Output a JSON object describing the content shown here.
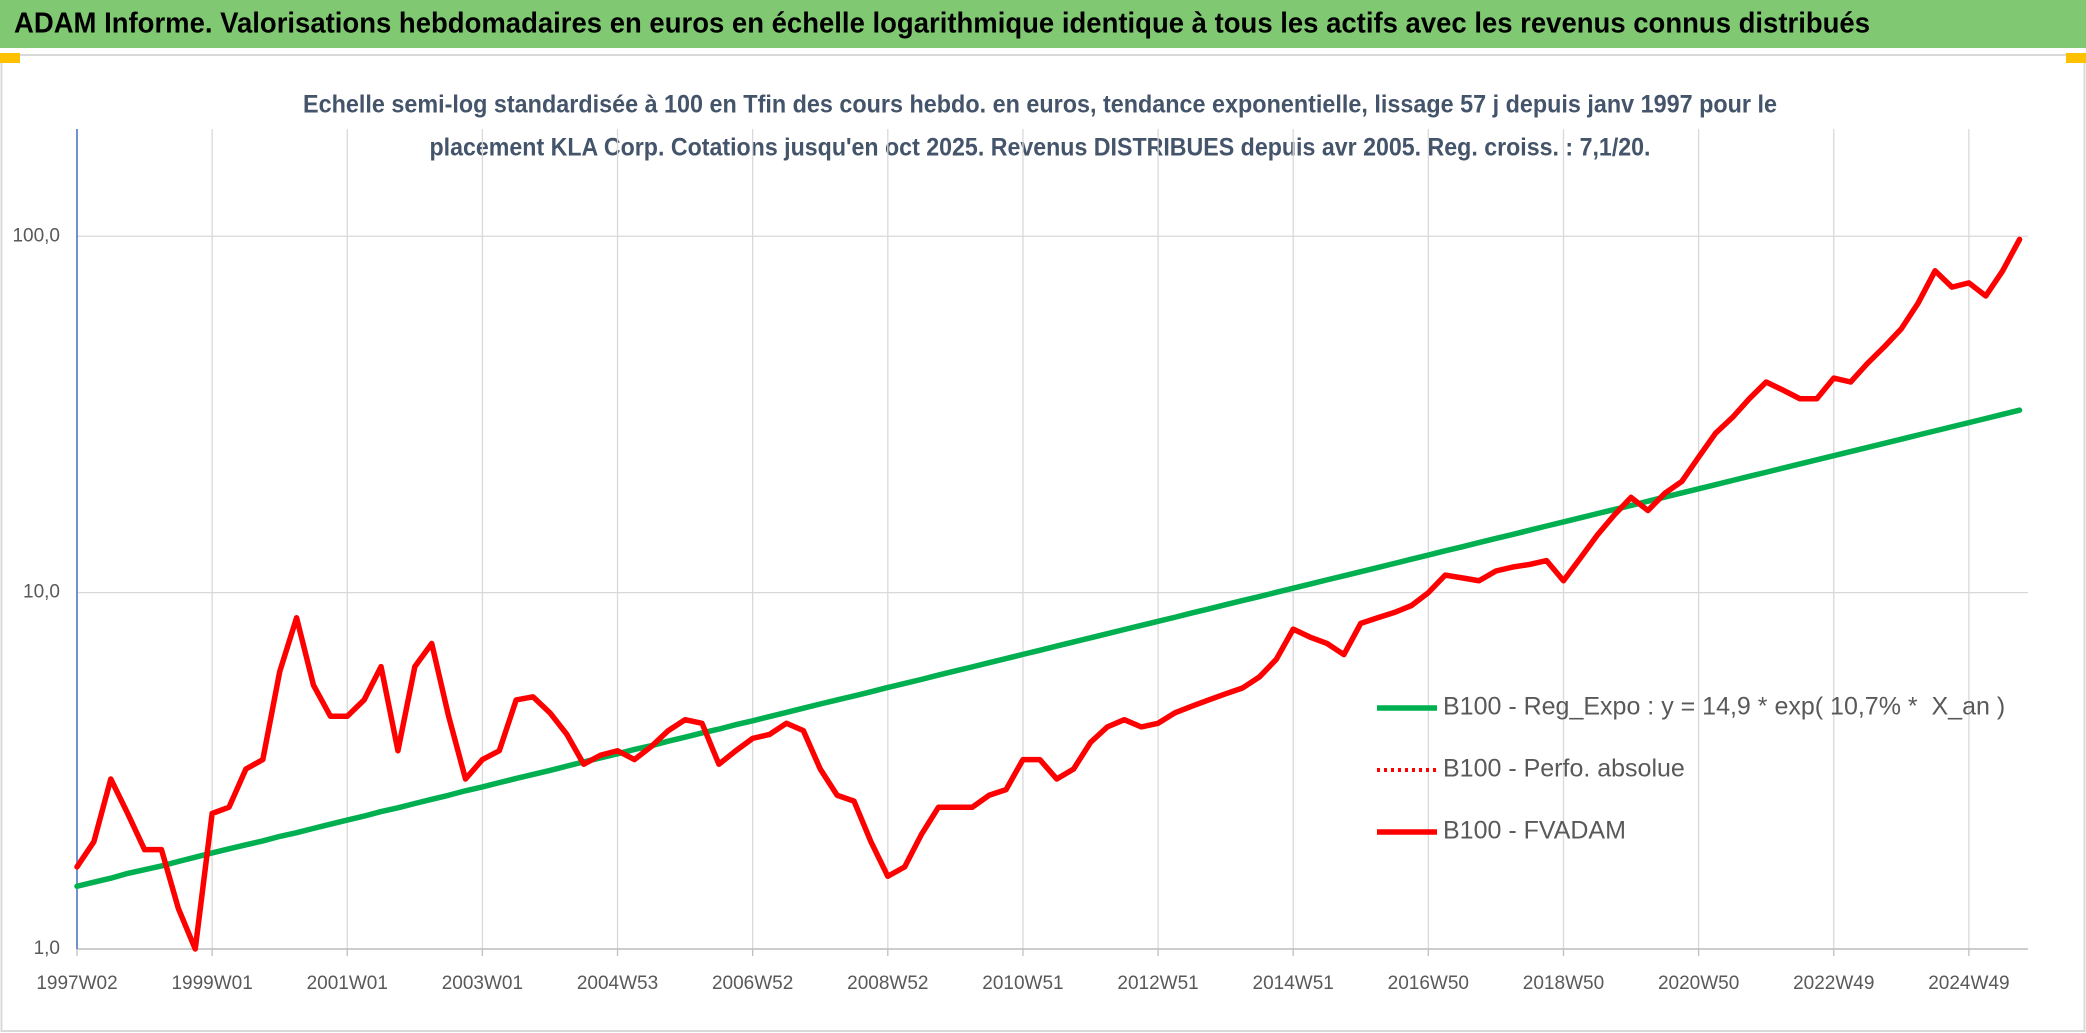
{
  "chart_data": {
    "type": "line",
    "title": "ADAM Informe. Valorisations hebdomadaires en euros en échelle logarithmique identique à tous les actifs avec les revenus connus distribués",
    "subtitle": [
      "Echelle semi-log standardisée à 100 en Tfin des cours hebdo. en euros, tendance exponentielle, lissage 57 j depuis janv 1997 pour le",
      "placement KLA Corp. Cotations jusqu'en oct 2025. Revenus DISTRIBUES depuis avr 2005. Reg. croiss. : 7,1/20."
    ],
    "y_scale": "log",
    "grid": true,
    "legend_position": "right",
    "ylim": [
      1,
      200
    ],
    "yticks": [
      {
        "value": 1,
        "label": "1,0"
      },
      {
        "value": 10,
        "label": "10,0"
      },
      {
        "value": 100,
        "label": "100,0"
      }
    ],
    "categories": [
      "1997W02",
      null,
      null,
      null,
      null,
      null,
      null,
      null,
      "1999W01",
      null,
      null,
      null,
      null,
      null,
      null,
      null,
      "2001W01",
      null,
      null,
      null,
      null,
      null,
      null,
      null,
      "2003W01",
      null,
      null,
      null,
      null,
      null,
      null,
      null,
      "2004W53",
      null,
      null,
      null,
      null,
      null,
      null,
      null,
      "2006W52",
      null,
      null,
      null,
      null,
      null,
      null,
      null,
      "2008W52",
      null,
      null,
      null,
      null,
      null,
      null,
      null,
      "2010W51",
      null,
      null,
      null,
      null,
      null,
      null,
      null,
      "2012W51",
      null,
      null,
      null,
      null,
      null,
      null,
      null,
      "2014W51",
      null,
      null,
      null,
      null,
      null,
      null,
      null,
      "2016W50",
      null,
      null,
      null,
      null,
      null,
      null,
      null,
      "2018W50",
      null,
      null,
      null,
      null,
      null,
      null,
      null,
      "2020W50",
      null,
      null,
      null,
      null,
      null,
      null,
      null,
      "2022W49",
      null,
      null,
      null,
      null,
      null,
      null,
      null,
      "2024W49",
      null,
      null,
      null
    ],
    "series": [
      {
        "name": "B100 - Reg_Expo : y = 14,9 * exp( 10,7% *  X_an )",
        "color": "#00b050",
        "style": "solid",
        "values": [
          1.5,
          1.54,
          1.58,
          1.63,
          1.67,
          1.71,
          1.76,
          1.81,
          1.86,
          1.91,
          1.96,
          2.01,
          2.07,
          2.12,
          2.18,
          2.24,
          2.3,
          2.36,
          2.43,
          2.49,
          2.56,
          2.63,
          2.7,
          2.78,
          2.85,
          2.93,
          3.01,
          3.09,
          3.17,
          3.26,
          3.35,
          3.44,
          3.53,
          3.63,
          3.72,
          3.83,
          3.93,
          4.04,
          4.14,
          4.26,
          4.37,
          4.49,
          4.61,
          4.74,
          4.87,
          5.0,
          5.13,
          5.27,
          5.42,
          5.56,
          5.71,
          5.87,
          6.03,
          6.19,
          6.36,
          6.53,
          6.71,
          6.89,
          7.08,
          7.27,
          7.47,
          7.67,
          7.88,
          8.09,
          8.31,
          8.53,
          8.77,
          9.0,
          9.25,
          9.5,
          9.75,
          10.02,
          10.29,
          10.57,
          10.86,
          11.15,
          11.45,
          11.76,
          12.08,
          12.41,
          12.75,
          13.1,
          13.45,
          13.82,
          14.19,
          14.57,
          14.97,
          15.38,
          15.79,
          16.22,
          16.66,
          17.11,
          17.57,
          18.05,
          18.54,
          19.04,
          19.56,
          20.09,
          20.64,
          21.2,
          21.77,
          22.36,
          22.97,
          23.59,
          24.22,
          24.88,
          25.55,
          26.24,
          26.96,
          27.69,
          28.44,
          29.21,
          30.0,
          30.81,
          31.65,
          32.51
        ]
      },
      {
        "name": "B100 - Perfo. absolue",
        "color": "#ff0000",
        "style": "dotted",
        "values": [
          1.7,
          2.0,
          3.0,
          2.4,
          1.9,
          1.9,
          1.3,
          1.0,
          2.4,
          2.5,
          3.2,
          3.4,
          6.0,
          8.5,
          5.5,
          4.5,
          4.5,
          5.0,
          6.2,
          3.6,
          6.2,
          7.2,
          4.5,
          3.0,
          3.4,
          3.6,
          5.0,
          5.1,
          4.6,
          4.0,
          3.3,
          3.5,
          3.6,
          3.4,
          3.7,
          4.1,
          4.4,
          4.3,
          3.3,
          3.6,
          3.9,
          4.0,
          4.3,
          4.1,
          3.2,
          2.7,
          2.6,
          2.0,
          1.6,
          1.7,
          2.1,
          2.5,
          2.5,
          2.5,
          2.7,
          2.8,
          3.4,
          3.4,
          3.0,
          3.2,
          3.8,
          4.2,
          4.4,
          4.2,
          4.3,
          4.6,
          4.8,
          5.0,
          5.2,
          5.4,
          5.8,
          6.5,
          7.9,
          7.5,
          7.2,
          6.7,
          8.2,
          8.5,
          8.8,
          9.2,
          10.0,
          11.2,
          11.0,
          10.8,
          11.5,
          11.8,
          12.0,
          12.3,
          10.8,
          12.5,
          14.5,
          16.5,
          18.5,
          17.0,
          19.0,
          20.5,
          24,
          28,
          31,
          35,
          39,
          37,
          35,
          35,
          40,
          39,
          44,
          49,
          55,
          65,
          80,
          72,
          74,
          68,
          80,
          98
        ]
      },
      {
        "name": "B100 - FVADAM",
        "color": "#ff0000",
        "style": "solid",
        "values": [
          1.7,
          2.0,
          3.0,
          2.4,
          1.9,
          1.9,
          1.3,
          1.0,
          2.4,
          2.5,
          3.2,
          3.4,
          6.0,
          8.5,
          5.5,
          4.5,
          4.5,
          5.0,
          6.2,
          3.6,
          6.2,
          7.2,
          4.5,
          3.0,
          3.4,
          3.6,
          5.0,
          5.1,
          4.6,
          4.0,
          3.3,
          3.5,
          3.6,
          3.4,
          3.7,
          4.1,
          4.4,
          4.3,
          3.3,
          3.6,
          3.9,
          4.0,
          4.3,
          4.1,
          3.2,
          2.7,
          2.6,
          2.0,
          1.6,
          1.7,
          2.1,
          2.5,
          2.5,
          2.5,
          2.7,
          2.8,
          3.4,
          3.4,
          3.0,
          3.2,
          3.8,
          4.2,
          4.4,
          4.2,
          4.3,
          4.6,
          4.8,
          5.0,
          5.2,
          5.4,
          5.8,
          6.5,
          7.9,
          7.5,
          7.2,
          6.7,
          8.2,
          8.5,
          8.8,
          9.2,
          10.0,
          11.2,
          11.0,
          10.8,
          11.5,
          11.8,
          12.0,
          12.3,
          10.8,
          12.5,
          14.5,
          16.5,
          18.5,
          17.0,
          19.0,
          20.5,
          24,
          28,
          31,
          35,
          39,
          37,
          35,
          35,
          40,
          39,
          44,
          49,
          55,
          65,
          80,
          72,
          74,
          68,
          80,
          98
        ]
      }
    ]
  }
}
